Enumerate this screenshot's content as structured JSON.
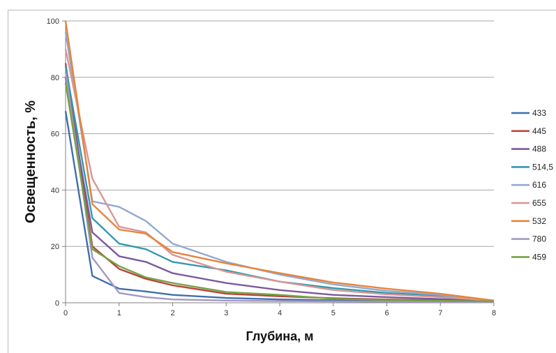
{
  "chart_data": {
    "type": "line",
    "title": "",
    "xlabel": "Глубина, м",
    "ylabel": "Освещенность, %",
    "xlim": [
      0,
      8
    ],
    "ylim": [
      0,
      100
    ],
    "xticks": [
      "0",
      "1",
      "2",
      "3",
      "4",
      "5",
      "6",
      "7",
      "8"
    ],
    "yticks": [
      "0",
      "20",
      "40",
      "60",
      "80",
      "100"
    ],
    "grid": "horizontal",
    "legend": "right",
    "x": [
      0,
      0.5,
      1,
      1.5,
      2,
      3,
      4,
      5,
      6,
      7,
      8
    ],
    "series": [
      {
        "name": "433",
        "color": "#3f6fae",
        "values": [
          68,
          9.5,
          5,
          4,
          2.8,
          1.7,
          1.2,
          0.9,
          0.7,
          0.5,
          0.4
        ]
      },
      {
        "name": "445",
        "color": "#b94441",
        "values": [
          85,
          20,
          12,
          8.5,
          6.2,
          3.2,
          2.3,
          1.6,
          1.2,
          0.9,
          0.6
        ]
      },
      {
        "name": "488",
        "color": "#7a5a9e",
        "values": [
          80,
          25,
          16.5,
          14.5,
          10.5,
          7,
          4.5,
          2.8,
          2,
          1.3,
          0.8
        ]
      },
      {
        "name": "514,5",
        "color": "#3399aa",
        "values": [
          84,
          30,
          21,
          19,
          14.5,
          11.5,
          7.5,
          5.2,
          3.5,
          2.5,
          0.8
        ]
      },
      {
        "name": "616",
        "color": "#93a9cf",
        "values": [
          96,
          36,
          34,
          29,
          21,
          14.5,
          10,
          6.5,
          4.2,
          2.8,
          0.8
        ]
      },
      {
        "name": "655",
        "color": "#d99694",
        "values": [
          90,
          44,
          27,
          25,
          17,
          11,
          7.5,
          4.5,
          3,
          2,
          0.8
        ]
      },
      {
        "name": "532",
        "color": "#e8833a",
        "values": [
          100,
          35,
          26,
          24.5,
          18,
          14,
          10.5,
          7.2,
          5,
          3.2,
          0.8
        ]
      },
      {
        "name": "780",
        "color": "#a498c4",
        "values": [
          82,
          16,
          3.5,
          2,
          1.2,
          0.8,
          0.6,
          0.5,
          0.4,
          0.3,
          0.2
        ]
      },
      {
        "name": "459",
        "color": "#77a244",
        "values": [
          78,
          19,
          13,
          9,
          7,
          3.8,
          2.8,
          1.4,
          1,
          0.7,
          0.5
        ]
      }
    ]
  }
}
